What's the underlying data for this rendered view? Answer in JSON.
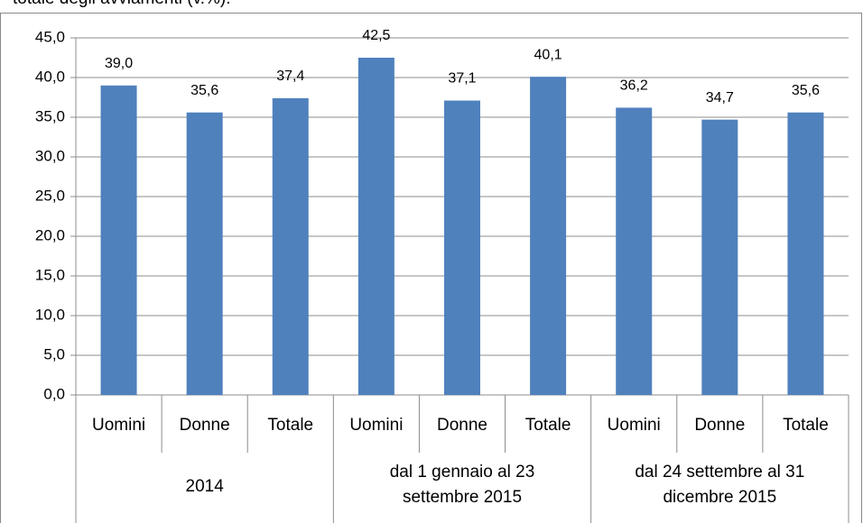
{
  "caption": "totale degli avviamenti (v.%).",
  "chart_data": {
    "type": "bar",
    "categories": [
      "Uomini",
      "Donne",
      "Totale",
      "Uomini",
      "Donne",
      "Totale",
      "Uomini",
      "Donne",
      "Totale"
    ],
    "groups": [
      "2014",
      "dal 1 gennaio al 23 settembre 2015",
      "dal 24 settembre al 31 dicembre 2015"
    ],
    "values": [
      39.0,
      35.6,
      37.4,
      42.5,
      37.1,
      40.1,
      36.2,
      34.7,
      35.6
    ],
    "value_labels": [
      "39,0",
      "35,6",
      "37,4",
      "42,5",
      "37,1",
      "40,1",
      "36,2",
      "34,7",
      "35,6"
    ],
    "color": "#4f81bd",
    "ylim": [
      0,
      45
    ],
    "yticks": [
      {
        "value": 0,
        "label": "0,0"
      },
      {
        "value": 5,
        "label": "5,0"
      },
      {
        "value": 10,
        "label": "10,0"
      },
      {
        "value": 15,
        "label": "15,0"
      },
      {
        "value": 20,
        "label": "20,0"
      },
      {
        "value": 25,
        "label": "25,0"
      },
      {
        "value": 30,
        "label": "30,0"
      },
      {
        "value": 35,
        "label": "35,0"
      },
      {
        "value": 40,
        "label": "40,0"
      },
      {
        "value": 45,
        "label": "45,0"
      }
    ],
    "grid": true
  }
}
